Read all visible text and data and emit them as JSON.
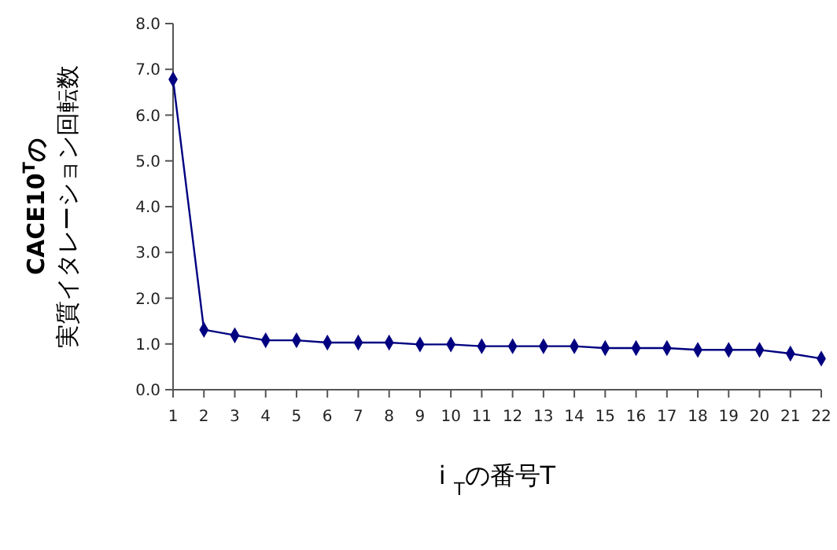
{
  "chart_data": {
    "type": "line",
    "ylabel": "実質イタレーション回転数",
    "y2label": "CACE10$^{T}$の",
    "xlabel": "i $_{T}$の番号T",
    "x": [
      1,
      2,
      3,
      4,
      5,
      6,
      7,
      8,
      9,
      10,
      11,
      12,
      13,
      14,
      15,
      16,
      17,
      18,
      19,
      20,
      21,
      22
    ],
    "xlim": [
      1,
      22
    ],
    "xticks": [
      1,
      2,
      3,
      4,
      5,
      6,
      7,
      8,
      9,
      10,
      11,
      12,
      13,
      14,
      15,
      16,
      17,
      18,
      19,
      20,
      21,
      22
    ],
    "ylim": [
      0,
      8
    ],
    "yticks": [
      {
        "value": 0,
        "label": "0.0"
      },
      {
        "value": 1,
        "label": "1.0"
      },
      {
        "value": 2,
        "label": "2.0"
      },
      {
        "value": 3,
        "label": "3.0"
      },
      {
        "value": 4,
        "label": "4.0"
      },
      {
        "value": 5,
        "label": "5.0"
      },
      {
        "value": 6,
        "label": "6.0"
      },
      {
        "value": 7,
        "label": "7.0"
      },
      {
        "value": 8,
        "label": "8.0"
      }
    ],
    "series": [
      {
        "color": "#000080",
        "values": [
          6.78,
          1.31,
          1.19,
          1.08,
          1.08,
          1.03,
          1.03,
          1.03,
          0.99,
          0.99,
          0.95,
          0.95,
          0.95,
          0.95,
          0.91,
          0.91,
          0.91,
          0.87,
          0.87,
          0.87,
          0.79,
          0.68
        ]
      }
    ],
    "marker": "diamond",
    "line_style": "solid"
  }
}
